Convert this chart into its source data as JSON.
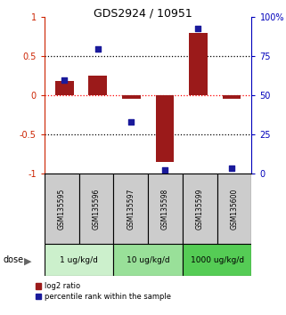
{
  "title": "GDS2924 / 10951",
  "samples": [
    "GSM135595",
    "GSM135596",
    "GSM135597",
    "GSM135598",
    "GSM135599",
    "GSM135600"
  ],
  "log2_ratio": [
    0.18,
    0.25,
    -0.05,
    -0.85,
    0.8,
    -0.05
  ],
  "percentile_rank": [
    60,
    80,
    33,
    2,
    93,
    3
  ],
  "bar_color": "#9b1a1a",
  "dot_color": "#1a1a9b",
  "ylim_left": [
    -1,
    1
  ],
  "ylim_right": [
    0,
    100
  ],
  "yticks_left": [
    -1,
    -0.5,
    0,
    0.5,
    1
  ],
  "yticks_right": [
    0,
    25,
    50,
    75,
    100
  ],
  "ytick_labels_right": [
    "0",
    "25",
    "50",
    "75",
    "100%"
  ],
  "dose_groups": [
    {
      "label": "1 ug/kg/d",
      "indices": [
        0,
        1
      ],
      "color": "#ccf0cc"
    },
    {
      "label": "10 ug/kg/d",
      "indices": [
        2,
        3
      ],
      "color": "#99e099"
    },
    {
      "label": "1000 ug/kg/d",
      "indices": [
        4,
        5
      ],
      "color": "#55cc55"
    }
  ],
  "legend_red_label": "log2 ratio",
  "legend_blue_label": "percentile rank within the sample",
  "bar_width": 0.55,
  "sample_bg": "#cccccc",
  "left_tick_color": "#cc2200",
  "right_tick_color": "#0000bb"
}
